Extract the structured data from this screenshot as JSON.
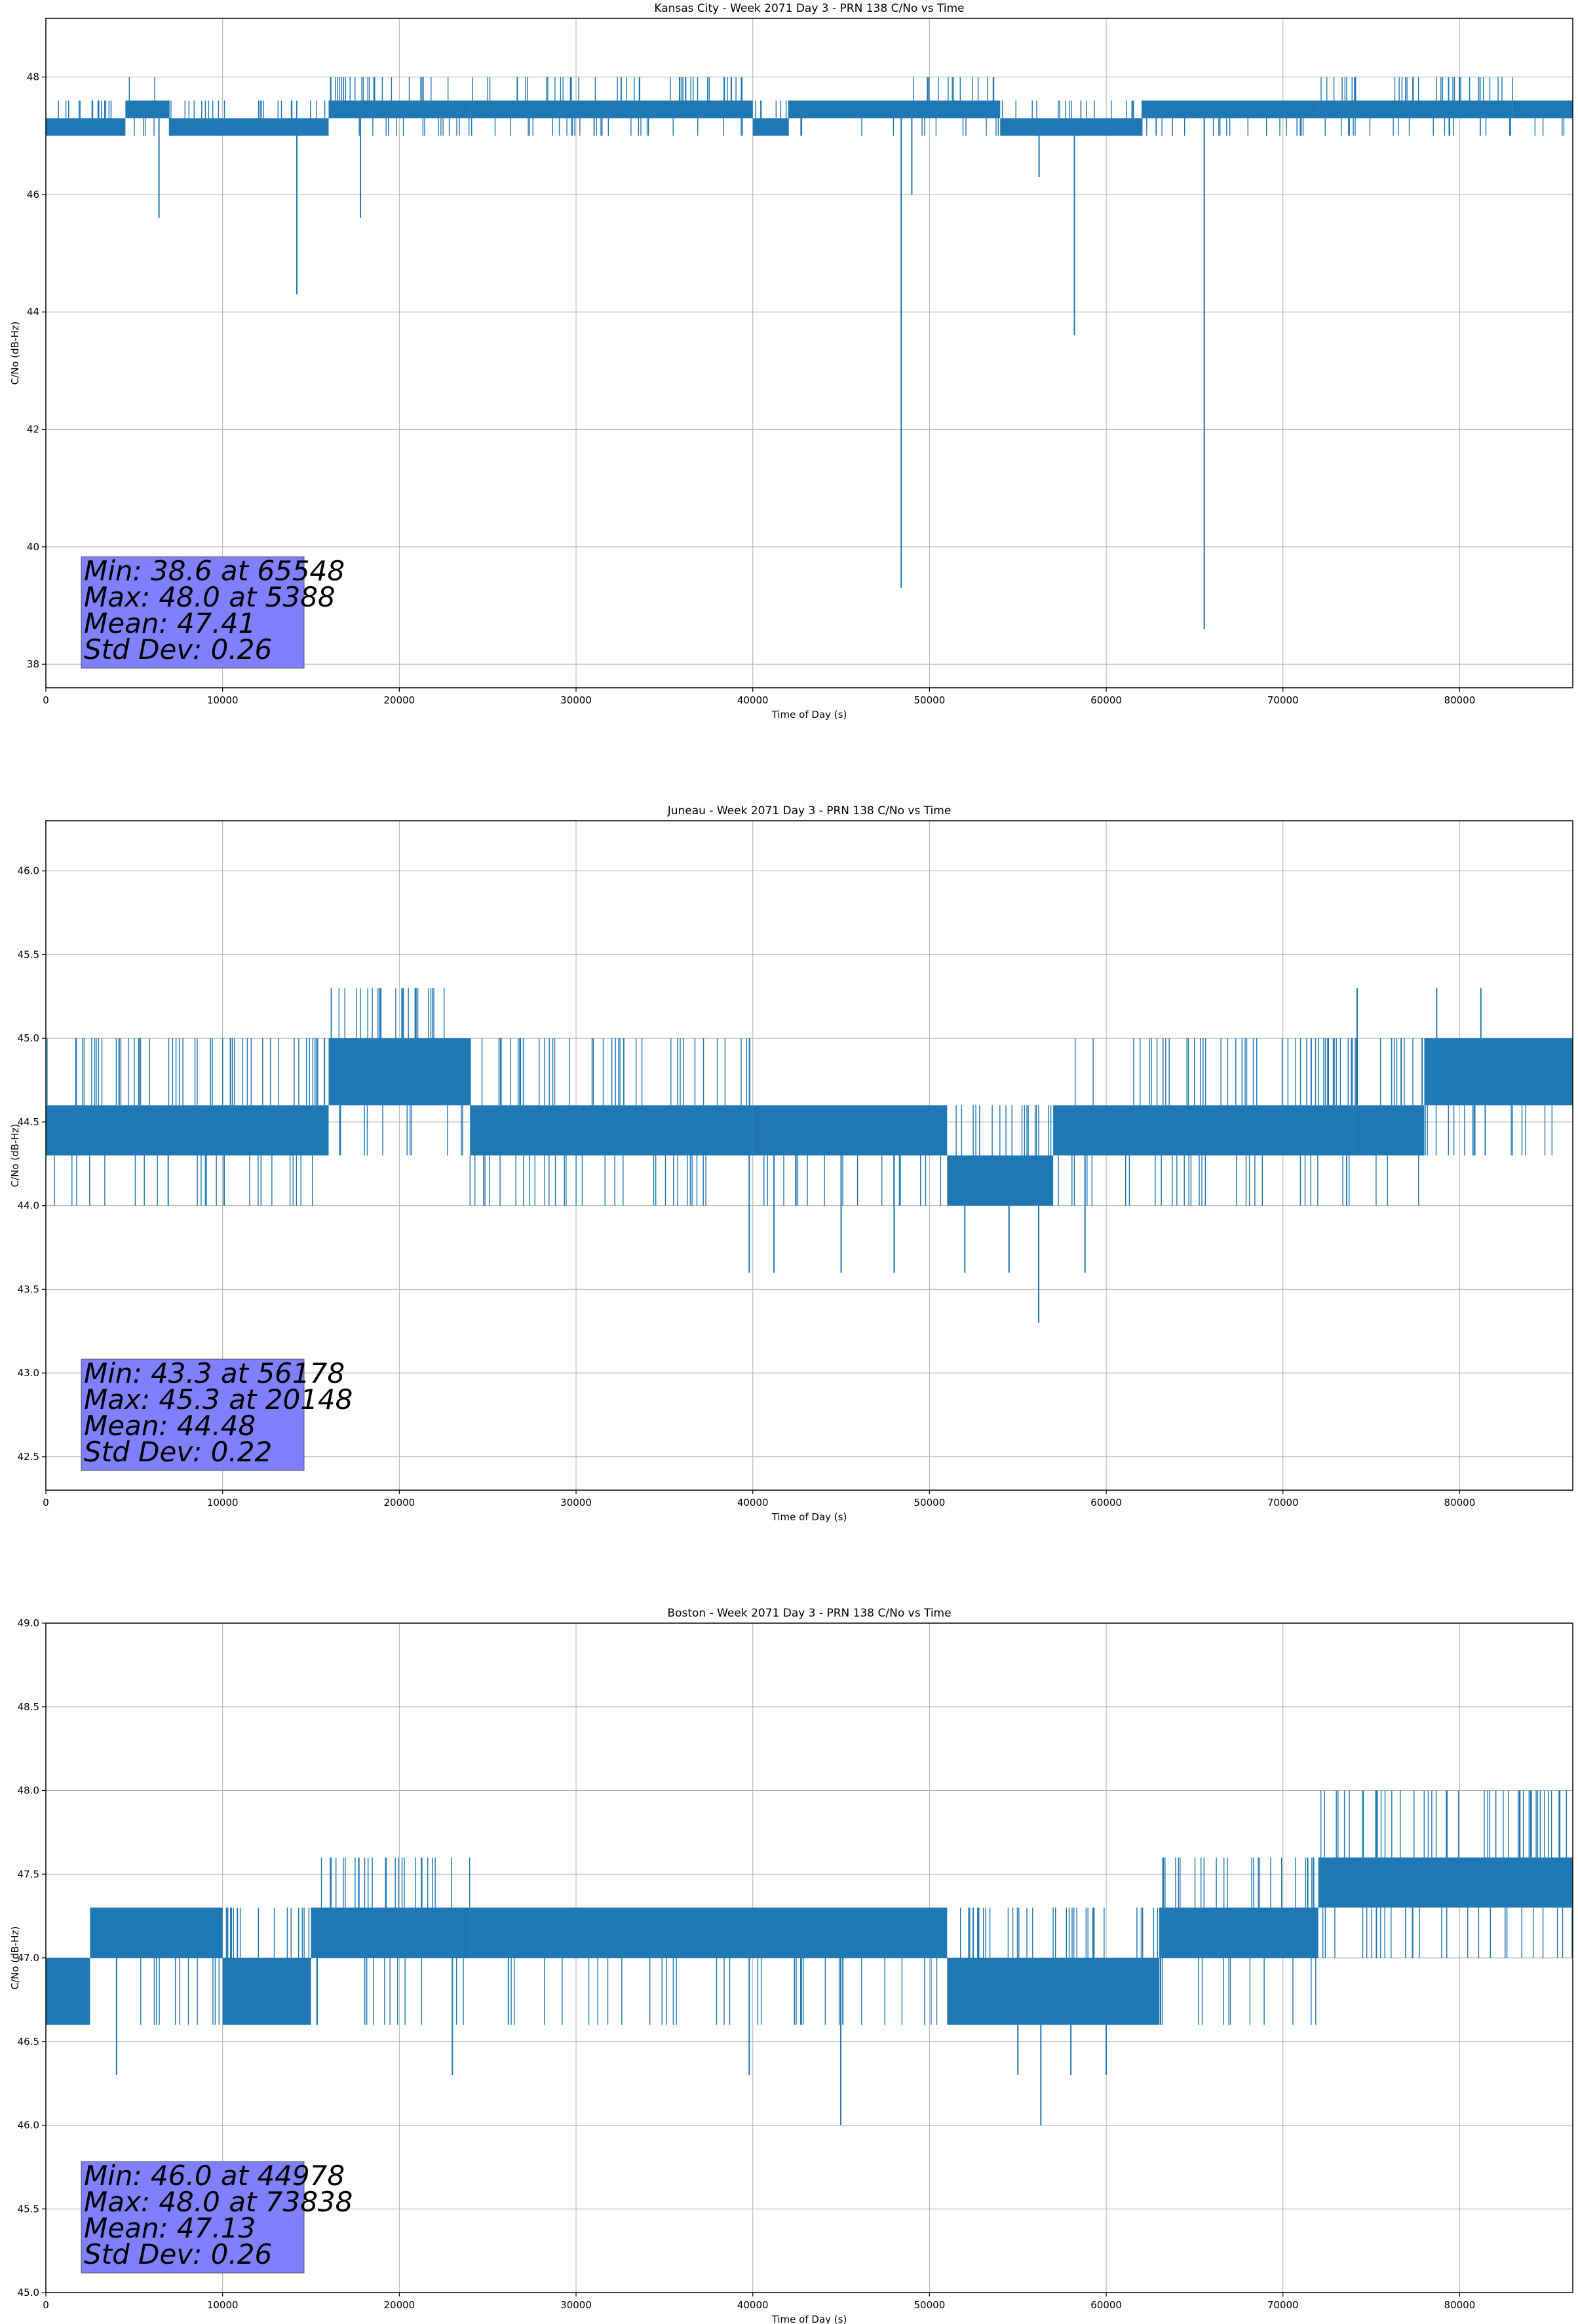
{
  "chart_data": [
    {
      "type": "line",
      "title": "Kansas City - Week 2071 Day 3 - PRN 138 C/No vs Time",
      "xlabel": "Time of Day (s)",
      "ylabel": "C/No (dB-Hz)",
      "xlim": [
        0,
        86400
      ],
      "ylim": [
        37.6,
        49.0
      ],
      "xticks": [
        0,
        10000,
        20000,
        30000,
        40000,
        50000,
        60000,
        70000,
        80000
      ],
      "yticks": [
        38,
        40,
        42,
        44,
        46,
        48
      ],
      "grid": true,
      "series_color": "#1f77b4",
      "series": [
        {
          "name": "C/No",
          "levels": [
            47.0,
            47.3,
            47.6,
            48.0
          ],
          "base_segments": [
            {
              "x": [
                0,
                4500
              ],
              "band": [
                47.0,
                47.3
              ],
              "upper_spikes": 47.6
            },
            {
              "x": [
                4500,
                7000
              ],
              "band": [
                47.3,
                47.6
              ],
              "upper_spikes": 48.0
            },
            {
              "x": [
                7000,
                16000
              ],
              "band": [
                47.0,
                47.3
              ],
              "upper_spikes": 47.6
            },
            {
              "x": [
                16000,
                24000
              ],
              "band": [
                47.3,
                47.6
              ],
              "upper_spikes": 48.0
            },
            {
              "x": [
                24000,
                40000
              ],
              "band": [
                47.3,
                47.6
              ],
              "upper_spikes": 48.0
            },
            {
              "x": [
                40000,
                42000
              ],
              "band": [
                47.0,
                47.3
              ],
              "upper_spikes": 47.6
            },
            {
              "x": [
                42000,
                49000
              ],
              "band": [
                47.3,
                47.6
              ],
              "upper_spikes": 47.6
            },
            {
              "x": [
                49000,
                54000
              ],
              "band": [
                47.3,
                47.6
              ],
              "upper_spikes": 48.0
            },
            {
              "x": [
                54000,
                62000
              ],
              "band": [
                47.0,
                47.3
              ],
              "upper_spikes": 47.6
            },
            {
              "x": [
                62000,
                72000
              ],
              "band": [
                47.3,
                47.6
              ],
              "upper_spikes": 47.6
            },
            {
              "x": [
                72000,
                83000
              ],
              "band": [
                47.3,
                47.6
              ],
              "upper_spikes": 48.0
            },
            {
              "x": [
                83000,
                86400
              ],
              "band": [
                47.3,
                47.6
              ],
              "upper_spikes": 47.6
            }
          ],
          "dips": [
            {
              "x": 6400,
              "y": 45.6
            },
            {
              "x": 14200,
              "y": 44.3
            },
            {
              "x": 17800,
              "y": 45.6
            },
            {
              "x": 48400,
              "y": 39.3
            },
            {
              "x": 49000,
              "y": 46.0
            },
            {
              "x": 56200,
              "y": 46.3
            },
            {
              "x": 58200,
              "y": 43.6
            },
            {
              "x": 65548,
              "y": 38.6
            }
          ]
        }
      ],
      "stats_box": {
        "lines": [
          "Min: 38.6 at 65548",
          "Max: 48.0 at 5388",
          "Mean: 47.41",
          "Std Dev: 0.26"
        ],
        "facecolor": "#8080ff",
        "placement": "bottom-left"
      }
    },
    {
      "type": "line",
      "title": "Juneau - Week 2071 Day 3 - PRN 138 C/No vs Time",
      "xlabel": "Time of Day (s)",
      "ylabel": "C/No (dB-Hz)",
      "xlim": [
        0,
        86400
      ],
      "ylim": [
        42.3,
        46.3
      ],
      "xticks": [
        0,
        10000,
        20000,
        30000,
        40000,
        50000,
        60000,
        70000,
        80000
      ],
      "yticks": [
        42.5,
        43.0,
        43.5,
        44.0,
        44.5,
        45.0,
        45.5,
        46.0
      ],
      "grid": true,
      "series_color": "#1f77b4",
      "series": [
        {
          "name": "C/No",
          "levels": [
            44.0,
            44.3,
            44.6,
            45.0
          ],
          "base_segments": [
            {
              "x": [
                0,
                16000
              ],
              "band": [
                44.3,
                44.6
              ],
              "upper_spikes": 45.0
            },
            {
              "x": [
                16000,
                24000
              ],
              "band": [
                44.6,
                45.0
              ],
              "upper_spikes": 45.3
            },
            {
              "x": [
                24000,
                40000
              ],
              "band": [
                44.3,
                44.6
              ],
              "upper_spikes": 45.0
            },
            {
              "x": [
                40000,
                51000
              ],
              "band": [
                44.3,
                44.6
              ],
              "upper_spikes": 44.6
            },
            {
              "x": [
                51000,
                57000
              ],
              "band": [
                44.0,
                44.3
              ],
              "upper_spikes": 44.6
            },
            {
              "x": [
                57000,
                74000
              ],
              "band": [
                44.3,
                44.6
              ],
              "upper_spikes": 45.0
            },
            {
              "x": [
                74000,
                78000
              ],
              "band": [
                44.3,
                44.6
              ],
              "upper_spikes": 45.0
            },
            {
              "x": [
                78000,
                86400
              ],
              "band": [
                44.6,
                45.0
              ],
              "upper_spikes": 45.0
            }
          ],
          "dips": [
            {
              "x": 39800,
              "y": 43.6
            },
            {
              "x": 41200,
              "y": 43.6
            },
            {
              "x": 45000,
              "y": 43.6
            },
            {
              "x": 48000,
              "y": 43.6
            },
            {
              "x": 52000,
              "y": 43.6
            },
            {
              "x": 54500,
              "y": 43.6
            },
            {
              "x": 56178,
              "y": 43.3
            },
            {
              "x": 58800,
              "y": 43.6
            }
          ],
          "peaks": [
            {
              "x": 20148,
              "y": 45.3
            },
            {
              "x": 20900,
              "y": 45.3
            },
            {
              "x": 74200,
              "y": 45.3
            },
            {
              "x": 78700,
              "y": 45.3
            },
            {
              "x": 81200,
              "y": 45.3
            }
          ]
        }
      ],
      "stats_box": {
        "lines": [
          "Min: 43.3 at 56178",
          "Max: 45.3 at 20148",
          "Mean: 44.48",
          "Std Dev: 0.22"
        ],
        "facecolor": "#8080ff",
        "placement": "bottom-left"
      }
    },
    {
      "type": "line",
      "title": "Boston - Week 2071 Day 3 - PRN 138 C/No vs Time",
      "xlabel": "Time of Day (s)",
      "ylabel": "C/No (dB-Hz)",
      "xlim": [
        0,
        86400
      ],
      "ylim": [
        45.0,
        49.0
      ],
      "xticks": [
        0,
        10000,
        20000,
        30000,
        40000,
        50000,
        60000,
        70000,
        80000
      ],
      "yticks": [
        45.0,
        45.5,
        46.0,
        46.5,
        47.0,
        47.5,
        48.0,
        48.5,
        49.0
      ],
      "grid": true,
      "series_color": "#1f77b4",
      "series": [
        {
          "name": "C/No",
          "levels": [
            46.6,
            47.0,
            47.3,
            47.6,
            48.0
          ],
          "base_segments": [
            {
              "x": [
                0,
                2500
              ],
              "band": [
                46.6,
                47.0
              ],
              "upper_spikes": 47.0
            },
            {
              "x": [
                2500,
                10000
              ],
              "band": [
                47.0,
                47.3
              ],
              "upper_spikes": 47.3
            },
            {
              "x": [
                10000,
                15000
              ],
              "band": [
                46.6,
                47.0
              ],
              "upper_spikes": 47.3
            },
            {
              "x": [
                15000,
                17000
              ],
              "band": [
                47.0,
                47.3
              ],
              "upper_spikes": 47.6
            },
            {
              "x": [
                17000,
                24000
              ],
              "band": [
                47.0,
                47.3
              ],
              "upper_spikes": 47.6
            },
            {
              "x": [
                24000,
                51000
              ],
              "band": [
                47.0,
                47.3
              ],
              "upper_spikes": 47.3
            },
            {
              "x": [
                51000,
                63000
              ],
              "band": [
                46.6,
                47.0
              ],
              "upper_spikes": 47.3
            },
            {
              "x": [
                63000,
                72000
              ],
              "band": [
                47.0,
                47.3
              ],
              "upper_spikes": 47.6
            },
            {
              "x": [
                72000,
                86400
              ],
              "band": [
                47.3,
                47.6
              ],
              "upper_spikes": 48.0
            }
          ],
          "dips": [
            {
              "x": 4000,
              "y": 46.3
            },
            {
              "x": 23000,
              "y": 46.3
            },
            {
              "x": 39800,
              "y": 46.3
            },
            {
              "x": 44978,
              "y": 46.0
            },
            {
              "x": 55000,
              "y": 46.3
            },
            {
              "x": 56300,
              "y": 46.0
            },
            {
              "x": 58000,
              "y": 46.3
            },
            {
              "x": 60000,
              "y": 46.3
            }
          ]
        }
      ],
      "stats_box": {
        "lines": [
          "Min: 46.0 at 44978",
          "Max: 48.0 at 73838",
          "Mean: 47.13",
          "Std Dev: 0.26"
        ],
        "facecolor": "#8080ff",
        "placement": "bottom-left"
      }
    }
  ]
}
